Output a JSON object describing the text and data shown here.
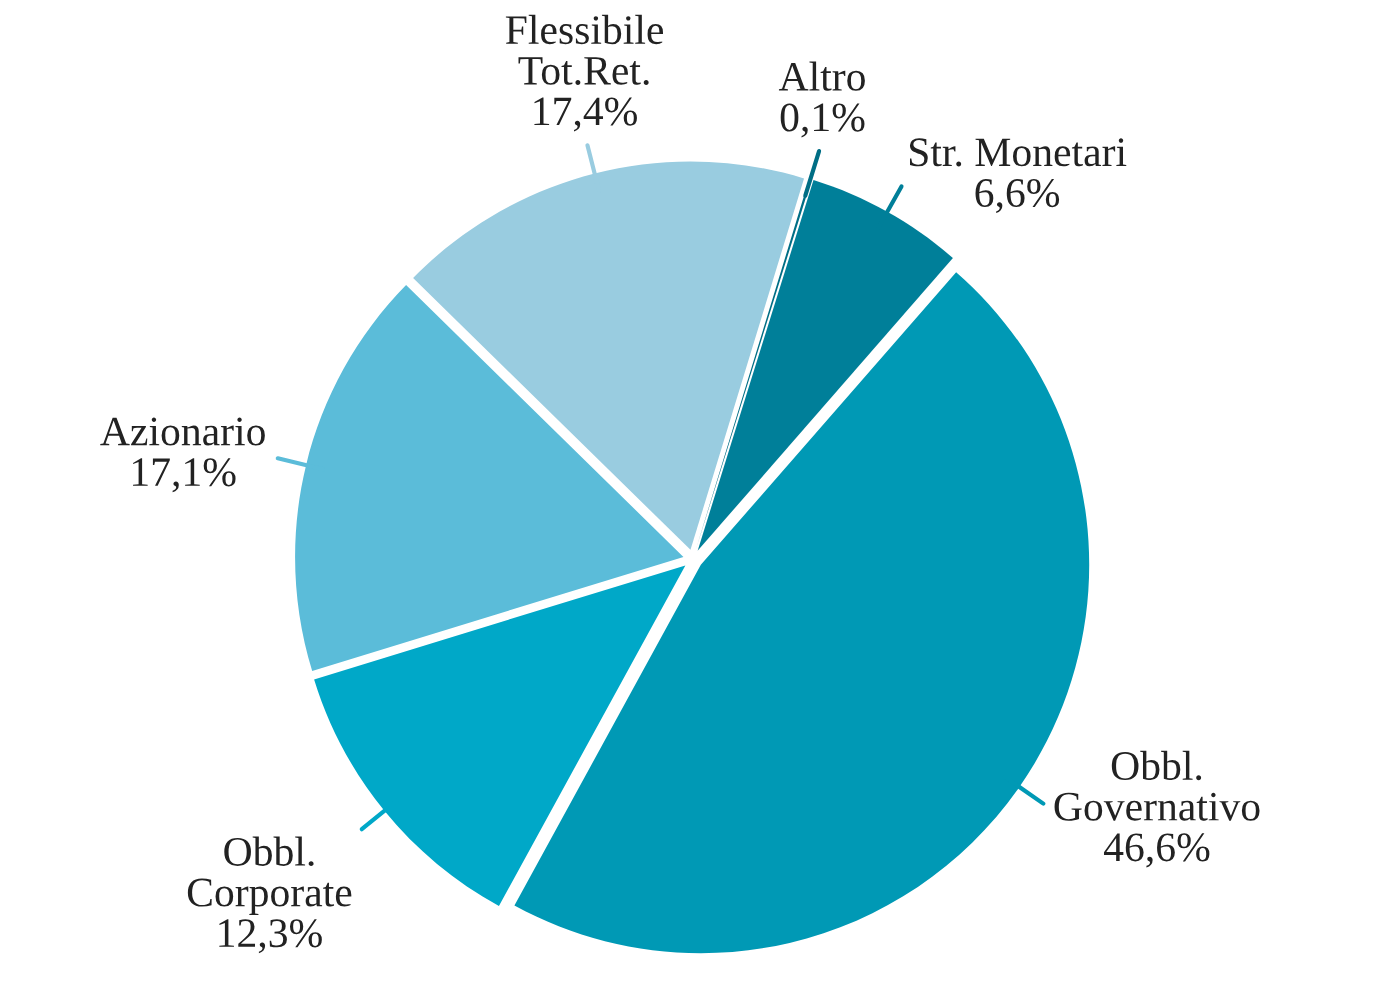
{
  "chart_data": {
    "type": "pie",
    "categories": [
      "Altro",
      "Str. Monetari",
      "Obbl.\nGovernativo",
      "Obbl.\nCorporate",
      "Azionario",
      "Flessibile\nTot.Ret."
    ],
    "values": [
      0.1,
      6.6,
      46.6,
      12.3,
      17.1,
      17.4
    ],
    "value_labels": [
      "0,1%",
      "6,6%",
      "46,6%",
      "12,3%",
      "17,1%",
      "17,4%"
    ],
    "colors": [
      "#006e85",
      "#007f99",
      "#0099b5",
      "#00a8c8",
      "#5bbcd9",
      "#99cce0"
    ]
  }
}
